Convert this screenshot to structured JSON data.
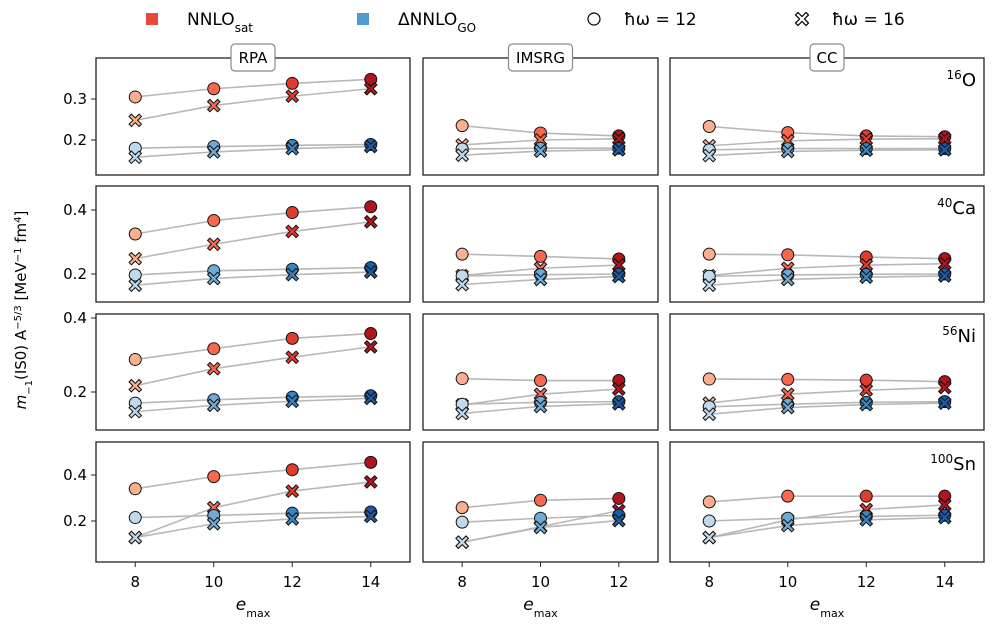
{
  "chart_data": {
    "type": "line",
    "ylabel": "m_{-1}(IS0) A^{-5/3} [MeV^{-1} fm^4]",
    "xlabel": "e_max",
    "legend": {
      "placement": "top",
      "entries": [
        {
          "label": "NNLO",
          "sub": "sat",
          "marker": "square",
          "color": "#e8483b"
        },
        {
          "label": "ΔNNLO",
          "sub": "GO",
          "marker": "square",
          "color": "#4e9bd0"
        },
        {
          "label": "ħω = 12",
          "marker": "circle",
          "color": "#ffffff"
        },
        {
          "label": "ħω = 16",
          "marker": "x",
          "color": "#ffffff"
        }
      ]
    },
    "columns": [
      {
        "title": "RPA",
        "x": [
          8,
          10,
          12,
          14
        ]
      },
      {
        "title": "IMSRG",
        "x": [
          8,
          10,
          12
        ]
      },
      {
        "title": "CC",
        "x": [
          8,
          10,
          12,
          14
        ]
      }
    ],
    "rows": [
      {
        "nucleus": "16O",
        "mass": "16",
        "element": "O",
        "yticks": [
          0.2,
          0.3
        ],
        "panels": [
          {
            "series": [
              {
                "name": "NNLOsat ħω=12",
                "values": [
                  0.305,
                  0.325,
                  0.338,
                  0.348
                ]
              },
              {
                "name": "NNLOsat ħω=16",
                "values": [
                  0.248,
                  0.284,
                  0.307,
                  0.325
                ]
              },
              {
                "name": "ΔNNLOGO ħω=12",
                "values": [
                  0.18,
                  0.184,
                  0.187,
                  0.189
                ]
              },
              {
                "name": "ΔNNLOGO ħω=16",
                "values": [
                  0.158,
                  0.171,
                  0.179,
                  0.184
                ]
              }
            ]
          },
          {
            "series": [
              {
                "name": "NNLOsat ħω=12",
                "values": [
                  0.235,
                  0.217,
                  0.21
                ]
              },
              {
                "name": "NNLOsat ħω=16",
                "values": [
                  0.188,
                  0.2,
                  0.203
                ]
              },
              {
                "name": "ΔNNLOGO ħω=12",
                "values": [
                  0.178,
                  0.18,
                  0.18
                ]
              },
              {
                "name": "ΔNNLOGO ħω=16",
                "values": [
                  0.163,
                  0.173,
                  0.176
                ]
              }
            ]
          },
          {
            "series": [
              {
                "name": "NNLOsat ħω=12",
                "values": [
                  0.233,
                  0.218,
                  0.21,
                  0.208
                ]
              },
              {
                "name": "NNLOsat ħω=16",
                "values": [
                  0.186,
                  0.198,
                  0.202,
                  0.203
                ]
              },
              {
                "name": "ΔNNLOGO ħω=12",
                "values": [
                  0.176,
                  0.179,
                  0.179,
                  0.179
                ]
              },
              {
                "name": "ΔNNLOGO ħω=16",
                "values": [
                  0.162,
                  0.172,
                  0.175,
                  0.176
                ]
              }
            ]
          }
        ]
      },
      {
        "nucleus": "40Ca",
        "mass": "40",
        "element": "Ca",
        "yticks": [
          0.2,
          0.4
        ],
        "panels": [
          {
            "series": [
              {
                "name": "NNLOsat ħω=12",
                "values": [
                  0.325,
                  0.367,
                  0.392,
                  0.41
                ]
              },
              {
                "name": "NNLOsat ħω=16",
                "values": [
                  0.248,
                  0.293,
                  0.333,
                  0.363
                ]
              },
              {
                "name": "ΔNNLOGO ħω=12",
                "values": [
                  0.197,
                  0.21,
                  0.215,
                  0.22
                ]
              },
              {
                "name": "ΔNNLOGO ħω=16",
                "values": [
                  0.165,
                  0.186,
                  0.198,
                  0.206
                ]
              }
            ]
          },
          {
            "series": [
              {
                "name": "NNLOsat ħω=12",
                "values": [
                  0.262,
                  0.255,
                  0.247
                ]
              },
              {
                "name": "NNLOsat ħω=16",
                "values": [
                  0.195,
                  0.218,
                  0.228
                ]
              },
              {
                "name": "ΔNNLOGO ħω=12",
                "values": [
                  0.194,
                  0.198,
                  0.2
                ]
              },
              {
                "name": "ΔNNLOGO ħω=16",
                "values": [
                  0.167,
                  0.183,
                  0.192
                ]
              }
            ]
          },
          {
            "series": [
              {
                "name": "NNLOsat ħω=12",
                "values": [
                  0.262,
                  0.26,
                  0.253,
                  0.248
                ]
              },
              {
                "name": "NNLOsat ħω=16",
                "values": [
                  0.195,
                  0.218,
                  0.228,
                  0.232
                ]
              },
              {
                "name": "ΔNNLOGO ħω=12",
                "values": [
                  0.193,
                  0.197,
                  0.199,
                  0.2
                ]
              },
              {
                "name": "ΔNNLOGO ħω=16",
                "values": [
                  0.165,
                  0.183,
                  0.19,
                  0.194
                ]
              }
            ]
          }
        ]
      },
      {
        "nucleus": "56Ni",
        "mass": "56",
        "element": "Ni",
        "yticks": [
          0.2,
          0.4
        ],
        "panels": [
          {
            "series": [
              {
                "name": "NNLOsat ħω=12",
                "values": [
                  0.288,
                  0.317,
                  0.345,
                  0.358
                ]
              },
              {
                "name": "NNLOsat ħω=16",
                "values": [
                  0.217,
                  0.263,
                  0.294,
                  0.322
                ]
              },
              {
                "name": "ΔNNLOGO ħω=12",
                "values": [
                  0.17,
                  0.179,
                  0.186,
                  0.19
                ]
              },
              {
                "name": "ΔNNLOGO ħω=16",
                "values": [
                  0.147,
                  0.164,
                  0.175,
                  0.183
                ]
              }
            ]
          },
          {
            "series": [
              {
                "name": "NNLOsat ħω=12",
                "values": [
                  0.236,
                  0.231,
                  0.231
                ]
              },
              {
                "name": "NNLOsat ħω=16",
                "values": [
                  0.165,
                  0.194,
                  0.208
                ]
              },
              {
                "name": "ΔNNLOGO ħω=12",
                "values": [
                  0.167,
                  0.172,
                  0.174
                ]
              },
              {
                "name": "ΔNNLOGO ħω=16",
                "values": [
                  0.142,
                  0.161,
                  0.168
                ]
              }
            ]
          },
          {
            "series": [
              {
                "name": "NNLOsat ħω=12",
                "values": [
                  0.235,
                  0.234,
                  0.232,
                  0.228
                ]
              },
              {
                "name": "NNLOsat ħω=16",
                "values": [
                  0.17,
                  0.194,
                  0.205,
                  0.212
                ]
              },
              {
                "name": "ΔNNLOGO ħω=12",
                "values": [
                  0.16,
                  0.167,
                  0.172,
                  0.174
                ]
              },
              {
                "name": "ΔNNLOGO ħω=16",
                "values": [
                  0.14,
                  0.158,
                  0.166,
                  0.17
                ]
              }
            ]
          }
        ]
      },
      {
        "nucleus": "100Sn",
        "mass": "100",
        "element": "Sn",
        "yticks": [
          0.2,
          0.4
        ],
        "panels": [
          {
            "series": [
              {
                "name": "NNLOsat ħω=12",
                "values": [
                  0.34,
                  0.393,
                  0.423,
                  0.455
                ]
              },
              {
                "name": "NNLOsat ħω=16",
                "values": [
                  0.128,
                  0.258,
                  0.33,
                  0.37
                ]
              },
              {
                "name": "ΔNNLOGO ħω=12",
                "values": [
                  0.215,
                  0.224,
                  0.234,
                  0.239
                ]
              },
              {
                "name": "ΔNNLOGO ħω=16",
                "values": [
                  0.128,
                  0.188,
                  0.209,
                  0.22
                ]
              }
            ]
          },
          {
            "series": [
              {
                "name": "NNLOsat ħω=12",
                "values": [
                  0.258,
                  0.29,
                  0.298
                ]
              },
              {
                "name": "NNLOsat ħω=16",
                "values": [
                  0.108,
                  0.175,
                  0.245
                ]
              },
              {
                "name": "ΔNNLOGO ħω=12",
                "values": [
                  0.195,
                  0.212,
                  0.225
                ]
              },
              {
                "name": "ΔNNLOGO ħω=16",
                "values": [
                  0.108,
                  0.172,
                  0.202
                ]
              }
            ]
          },
          {
            "series": [
              {
                "name": "NNLOsat ħω=12",
                "values": [
                  0.283,
                  0.308,
                  0.308,
                  0.308
                ]
              },
              {
                "name": "NNLOsat ħω=16",
                "values": [
                  0.128,
                  0.205,
                  0.25,
                  0.27
                ]
              },
              {
                "name": "ΔNNLOGO ħω=12",
                "values": [
                  0.2,
                  0.212,
                  0.22,
                  0.225
                ]
              },
              {
                "name": "ΔNNLOGO ħω=16",
                "values": [
                  0.128,
                  0.18,
                  0.205,
                  0.215
                ]
              }
            ]
          }
        ]
      }
    ],
    "color_scales": {
      "NNLOsat": [
        "#fcae91",
        "#f6694f",
        "#e03b2f",
        "#b0141c"
      ],
      "ΔNNLOGO": [
        "#c1d9ec",
        "#6fabd6",
        "#3a85c0",
        "#1b5ca3"
      ]
    },
    "line_color": "#b8b8b8",
    "grid": false
  }
}
